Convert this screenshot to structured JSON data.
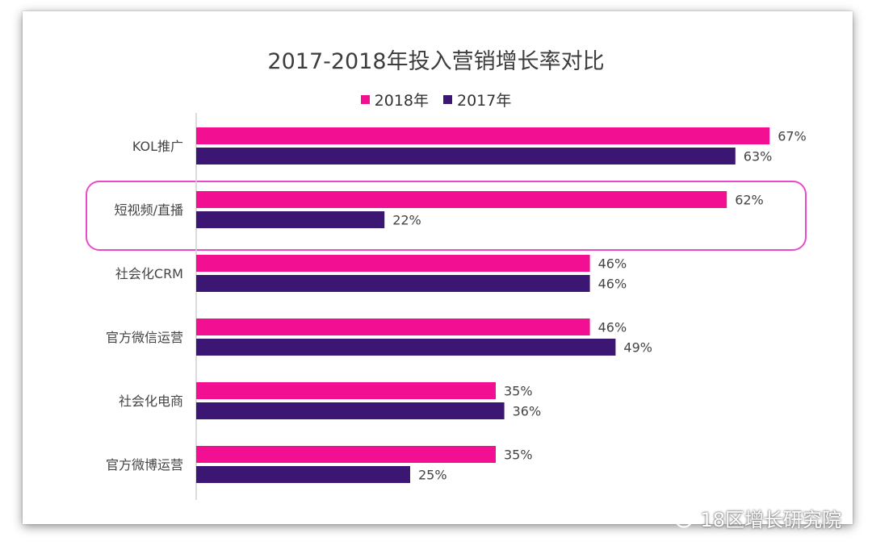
{
  "chart_data": {
    "type": "bar",
    "title": "2017-2018年投入营销增长率对比",
    "categories": [
      "KOL推广",
      "短视频/直播",
      "社会化CRM",
      "官方微信运营",
      "社会化电商",
      "官方微博运营"
    ],
    "series": [
      {
        "name": "2018年",
        "color": "#f20f92",
        "values": [
          67,
          62,
          46,
          46,
          35,
          35
        ]
      },
      {
        "name": "2017年",
        "color": "#3b1672",
        "values": [
          63,
          22,
          46,
          49,
          36,
          25
        ]
      }
    ],
    "value_format": "%",
    "orientation": "horizontal",
    "grid": false,
    "legend": "top-center",
    "highlight": {
      "category": "短视频/直播",
      "color": "#e94ac9"
    }
  },
  "watermark": {
    "text": "18区增长研究院",
    "icon": "wechat-icon"
  }
}
